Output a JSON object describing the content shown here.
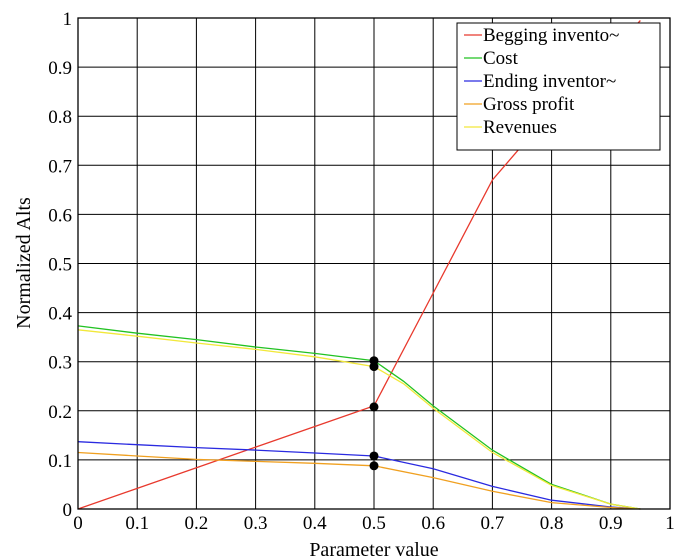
{
  "chart_data": {
    "type": "line",
    "xlabel": "Parameter value",
    "ylabel": "Normalized Alts",
    "xlim": [
      0,
      1
    ],
    "ylim": [
      0,
      1
    ],
    "x_ticks": [
      "0",
      "0.1",
      "0.2",
      "0.3",
      "0.4",
      "0.5",
      "0.6",
      "0.7",
      "0.8",
      "0.9",
      "1"
    ],
    "y_ticks": [
      "0",
      "0.1",
      "0.2",
      "0.3",
      "0.4",
      "0.5",
      "0.6",
      "0.7",
      "0.8",
      "0.9",
      "1"
    ],
    "grid": true,
    "legend_position": "top-right",
    "series": [
      {
        "name": "Begging invento~",
        "color": "#e8392d",
        "x": [
          0,
          0.1,
          0.2,
          0.3,
          0.4,
          0.5,
          0.6,
          0.7,
          0.8,
          0.9,
          0.95
        ],
        "y": [
          0,
          0.042,
          0.084,
          0.126,
          0.168,
          0.21,
          0.44,
          0.67,
          0.81,
          0.93,
          0.995
        ]
      },
      {
        "name": "Cost",
        "color": "#22c222",
        "x": [
          0,
          0.1,
          0.2,
          0.3,
          0.4,
          0.5,
          0.55,
          0.6,
          0.7,
          0.8,
          0.9,
          0.95
        ],
        "y": [
          0.373,
          0.358,
          0.345,
          0.33,
          0.317,
          0.302,
          0.26,
          0.21,
          0.12,
          0.05,
          0.01,
          0
        ]
      },
      {
        "name": "Ending inventor~",
        "color": "#2a2ae0",
        "x": [
          0,
          0.1,
          0.2,
          0.3,
          0.4,
          0.5,
          0.6,
          0.7,
          0.8,
          0.9,
          0.95
        ],
        "y": [
          0.137,
          0.131,
          0.125,
          0.12,
          0.114,
          0.108,
          0.082,
          0.046,
          0.018,
          0.004,
          0
        ]
      },
      {
        "name": "Gross profit",
        "color": "#f0a020",
        "x": [
          0,
          0.1,
          0.2,
          0.3,
          0.4,
          0.5,
          0.6,
          0.7,
          0.8,
          0.9,
          0.95
        ],
        "y": [
          0.115,
          0.108,
          0.101,
          0.097,
          0.093,
          0.088,
          0.064,
          0.036,
          0.013,
          0.003,
          0
        ]
      },
      {
        "name": "Revenues",
        "color": "#f2e83a",
        "x": [
          0,
          0.1,
          0.2,
          0.3,
          0.4,
          0.5,
          0.55,
          0.6,
          0.7,
          0.8,
          0.9,
          0.95
        ],
        "y": [
          0.365,
          0.352,
          0.338,
          0.325,
          0.31,
          0.29,
          0.255,
          0.205,
          0.115,
          0.048,
          0.01,
          0
        ]
      }
    ],
    "markers": [
      {
        "x": 0.5,
        "y": 0.302
      },
      {
        "x": 0.5,
        "y": 0.29
      },
      {
        "x": 0.5,
        "y": 0.208
      },
      {
        "x": 0.5,
        "y": 0.108
      },
      {
        "x": 0.5,
        "y": 0.088
      }
    ]
  }
}
